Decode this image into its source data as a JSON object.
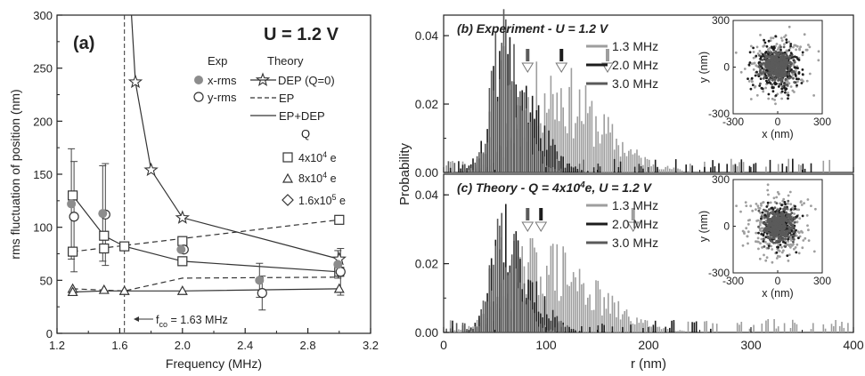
{
  "figure": {
    "panel_a": {
      "letter": "(a)",
      "header": "U = 1.2 V",
      "exp_heading": "Exp",
      "theory_heading": "Theory",
      "q_heading": "Q",
      "cutoff_label": "f",
      "cutoff_sub": "co",
      "cutoff_value": " = 1.63 MHz"
    },
    "panel_b": {
      "title": "(b) Experiment - U = 1.2 V"
    },
    "panel_c": {
      "title": "(c) Theory - Q = 4x10^4 e, U = 1.2 V",
      "title_pre": "(c) Theory - Q = 4x10",
      "title_exp": "4",
      "title_post": "e, U = 1.2 V"
    },
    "shared_ylabel": "Probability",
    "shared_xlabel": "r (nm)",
    "inset": {
      "xlabel": "x (nm)",
      "ylabel": "y (nm)",
      "ticks": [
        "-300",
        "0",
        "300"
      ]
    },
    "colors": {
      "f13": "#9e9e9e",
      "f20": "#1c1c1c",
      "f30": "#5a5a5a",
      "axis": "#222222",
      "line": "#333333"
    }
  },
  "chart_data": [
    {
      "type": "line",
      "title": "U = 1.2 V",
      "xlabel": "Frequency (MHz)",
      "ylabel": "rms fluctuation of position (nm)",
      "xlim": [
        1.2,
        3.2
      ],
      "ylim": [
        0,
        300
      ],
      "xticks": [
        "1.2",
        "1.6",
        "2.0",
        "2.4",
        "2.8",
        "3.2"
      ],
      "yticks": [
        "0",
        "50",
        "100",
        "150",
        "200",
        "250",
        "300"
      ],
      "cutoff_frequency": 1.63,
      "series": [
        {
          "name": "x-rms",
          "kind": "exp",
          "marker": "filled-circle",
          "points": [
            [
              1.3,
              122
            ],
            [
              1.5,
              113
            ],
            [
              2.0,
              79
            ],
            [
              2.5,
              50
            ],
            [
              3.0,
              65
            ]
          ],
          "err": [
            52,
            45,
            0,
            16,
            13
          ]
        },
        {
          "name": "y-rms",
          "kind": "exp",
          "marker": "open-circle",
          "points": [
            [
              1.3,
              110
            ],
            [
              1.5,
              112
            ],
            [
              2.0,
              79
            ],
            [
              2.5,
              38
            ],
            [
              3.0,
              58
            ]
          ],
          "err": [
            52,
            48,
            0,
            16,
            22
          ]
        },
        {
          "name": "DEP (Q=0)",
          "kind": "theory",
          "style": "solid",
          "marker": "star",
          "points": [
            [
              1.675,
              300
            ],
            [
              1.7,
              237
            ],
            [
              1.8,
              154
            ],
            [
              2.0,
              109
            ],
            [
              3.0,
              70
            ]
          ]
        },
        {
          "name": "EP",
          "kind": "theory",
          "style": "dashed",
          "points": [
            [
              1.3,
              77
            ],
            [
              3.0,
              107
            ]
          ]
        },
        {
          "name": "EP+DEP",
          "kind": "theory",
          "style": "solid",
          "points": [
            [
              1.3,
              130
            ],
            [
              1.5,
              92
            ],
            [
              1.63,
              82
            ],
            [
              2.0,
              68
            ],
            [
              3.0,
              58
            ]
          ]
        },
        {
          "name": "4x10^4 e",
          "legend_pre": "4x10",
          "legend_exp": "4",
          "legend_post": " e",
          "marker": "square",
          "style": "none",
          "points": [
            [
              1.3,
              130
            ],
            [
              1.3,
              77
            ],
            [
              1.5,
              92
            ],
            [
              1.5,
              80
            ],
            [
              1.63,
              82
            ],
            [
              2.0,
              87
            ],
            [
              2.0,
              68
            ],
            [
              3.0,
              107
            ],
            [
              3.0,
              58
            ]
          ]
        },
        {
          "name": "8x10^4 e",
          "legend_pre": "8x10",
          "legend_exp": "4",
          "legend_post": " e",
          "marker": "triangle",
          "style_pairs": "dashed+solid",
          "dashed_points": [
            [
              1.3,
              42
            ],
            [
              1.63,
              40
            ],
            [
              2.0,
              52
            ],
            [
              3.0,
              53
            ]
          ],
          "solid_points": [
            [
              1.3,
              39
            ],
            [
              1.5,
              40
            ],
            [
              1.63,
              40
            ],
            [
              2.0,
              40
            ],
            [
              3.0,
              42
            ]
          ],
          "points": [
            [
              1.3,
              42
            ],
            [
              1.3,
              39
            ],
            [
              1.5,
              41
            ],
            [
              1.63,
              40
            ],
            [
              2.0,
              40
            ],
            [
              3.0,
              42
            ]
          ]
        },
        {
          "name": "1.6x10^5 e",
          "legend_pre": "1.6x10",
          "legend_exp": "5",
          "legend_post": " e",
          "marker": "diamond",
          "style": "none",
          "points": [
            [
              1.3,
              42
            ],
            [
              1.5,
              41
            ],
            [
              1.63,
              40
            ],
            [
              2.0,
              52
            ],
            [
              3.0,
              53
            ]
          ]
        }
      ]
    },
    {
      "type": "bar",
      "title": "(b) Experiment - U = 1.2 V",
      "xlabel": "r (nm)",
      "ylabel": "Probability",
      "xlim": [
        0,
        400
      ],
      "ylim": [
        0,
        0.046
      ],
      "yticks": [
        "0.00",
        "0.02",
        "0.04"
      ],
      "bin_width": 2,
      "arrow_markers": [
        {
          "freq": "1.3 MHz",
          "r": 160
        },
        {
          "freq": "2.0 MHz",
          "r": 115
        },
        {
          "freq": "3.0 MHz",
          "r": 82
        }
      ],
      "series": [
        {
          "name": "1.3 MHz",
          "color": "#9e9e9e",
          "peak_r": 100,
          "peak_p": 0.024,
          "spread": 70,
          "max_r": 380
        },
        {
          "name": "2.0 MHz",
          "color": "#1c1c1c",
          "peak_r": 60,
          "peak_p": 0.03,
          "spread": 38,
          "max_r": 360
        },
        {
          "name": "3.0 MHz",
          "color": "#5a5a5a",
          "peak_r": 55,
          "peak_p": 0.034,
          "spread": 28,
          "max_r": 140
        }
      ],
      "inset": {
        "xlim": [
          -300,
          300
        ],
        "ylim": [
          -300,
          300
        ],
        "radii": {
          "1.3 MHz": 175,
          "2.0 MHz": 140,
          "3.0 MHz": 85
        }
      }
    },
    {
      "type": "bar",
      "title": "(c) Theory - Q = 4x10^4 e, U = 1.2 V",
      "xlabel": "r (nm)",
      "ylabel": "Probability",
      "xlim": [
        0,
        400
      ],
      "ylim": [
        0,
        0.046
      ],
      "xticks": [
        "0",
        "100",
        "200",
        "300",
        "400"
      ],
      "yticks": [
        "0.00",
        "0.02",
        "0.04"
      ],
      "bin_width": 2,
      "arrow_markers": [
        {
          "freq": "1.3 MHz",
          "r": 185
        },
        {
          "freq": "2.0 MHz",
          "r": 95
        },
        {
          "freq": "3.0 MHz",
          "r": 82
        }
      ],
      "series": [
        {
          "name": "1.3 MHz",
          "color": "#9e9e9e",
          "peak_r": 90,
          "peak_p": 0.02,
          "spread": 75,
          "max_r": 395
        },
        {
          "name": "2.0 MHz",
          "color": "#1c1c1c",
          "peak_r": 60,
          "peak_p": 0.026,
          "spread": 35,
          "max_r": 260
        },
        {
          "name": "3.0 MHz",
          "color": "#5a5a5a",
          "peak_r": 55,
          "peak_p": 0.028,
          "spread": 26,
          "max_r": 120
        }
      ],
      "inset": {
        "xlim": [
          -300,
          300
        ],
        "ylim": [
          -300,
          300
        ],
        "radii": {
          "1.3 MHz": 190,
          "2.0 MHz": 110,
          "3.0 MHz": 90
        }
      }
    }
  ]
}
